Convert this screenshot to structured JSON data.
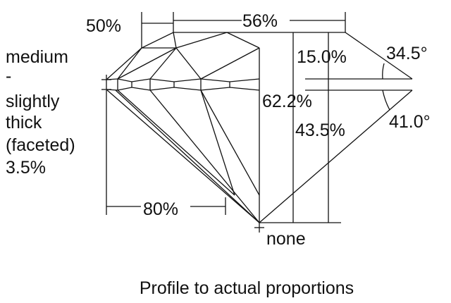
{
  "labels": {
    "crown_height_ratio": "50%",
    "table": "56%",
    "crown_height": "15.0%",
    "crown_angle": "34.5°",
    "total_depth": "62.2%",
    "pavilion_depth": "43.5%",
    "pavilion_angle": "41.0°",
    "lower_half": "80%",
    "culet": "none",
    "girdle": [
      "medium",
      "-",
      "slightly",
      "thick",
      "(faceted)",
      "3.5%"
    ]
  },
  "caption": "Profile to actual proportions"
}
